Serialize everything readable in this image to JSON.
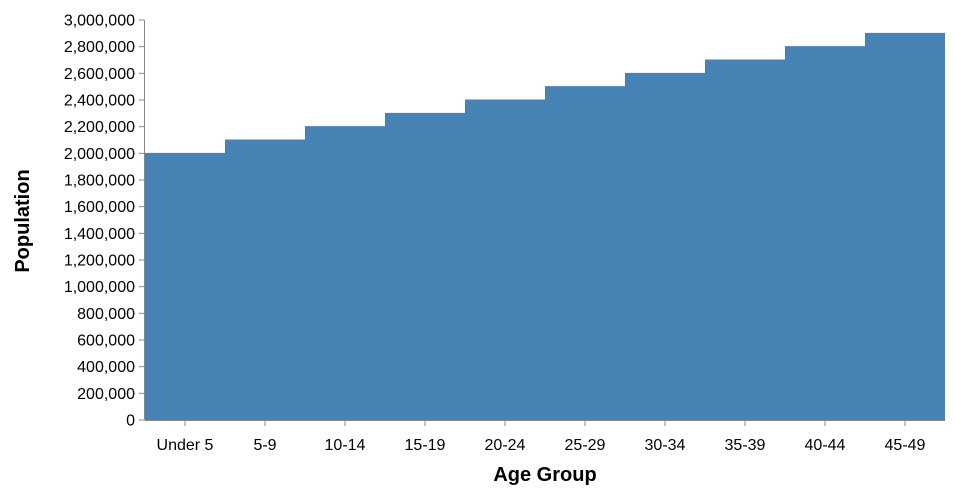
{
  "chart_data": {
    "type": "area",
    "title": "",
    "xlabel": "Age Group",
    "ylabel": "Population",
    "categories": [
      "Under 5",
      "5-9",
      "10-14",
      "15-19",
      "20-24",
      "25-29",
      "30-34",
      "35-39",
      "40-44",
      "45-49"
    ],
    "values": [
      2000000,
      2100000,
      2200000,
      2300000,
      2400000,
      2500000,
      2600000,
      2700000,
      2800000,
      2900000
    ],
    "ylim": [
      0,
      3000000
    ],
    "yticks": [
      0,
      200000,
      400000,
      600000,
      800000,
      1000000,
      1200000,
      1400000,
      1600000,
      1800000,
      2000000,
      2200000,
      2400000,
      2600000,
      2800000,
      3000000
    ],
    "ytick_labels": [
      "0",
      "200,000",
      "400,000",
      "600,000",
      "800,000",
      "1,000,000",
      "1,200,000",
      "1,400,000",
      "1,600,000",
      "1,800,000",
      "2,000,000",
      "2,200,000",
      "2,400,000",
      "2,600,000",
      "2,800,000",
      "3,000,000"
    ],
    "interpolation": "step",
    "grid": false,
    "fill_color": "#4682b4",
    "axis_color": "#888888"
  }
}
